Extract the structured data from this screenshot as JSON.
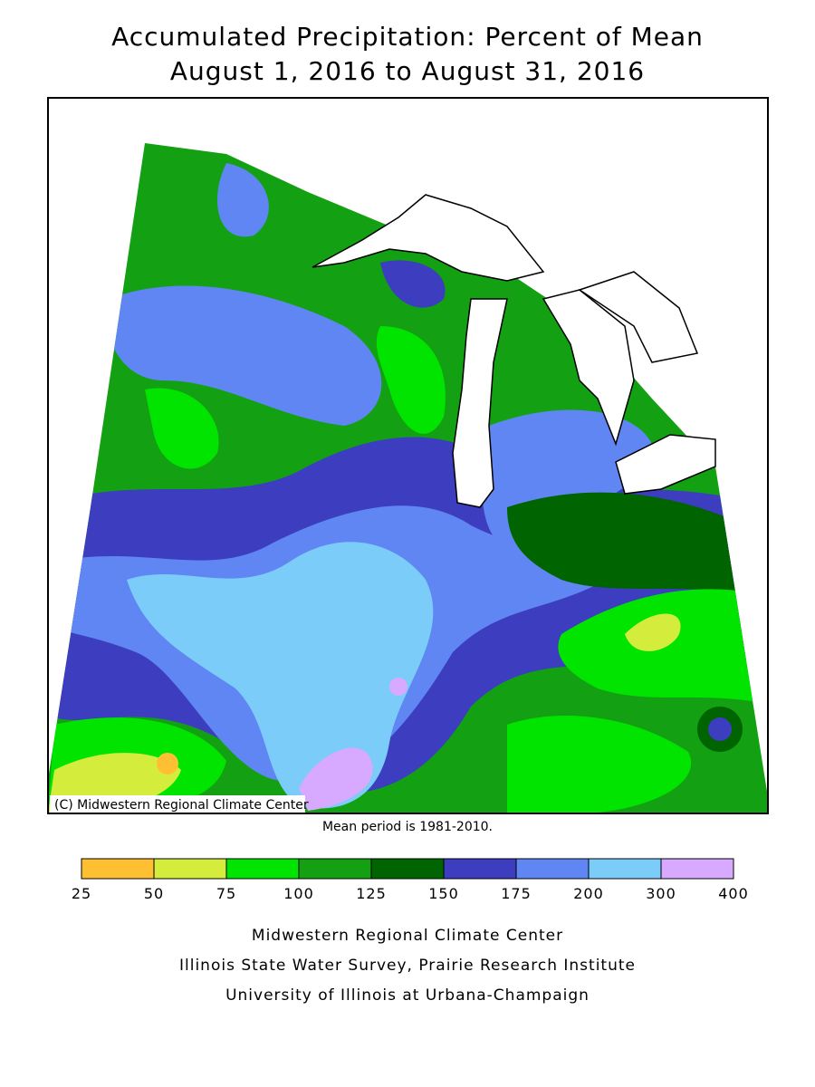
{
  "title": [
    "Accumulated Precipitation: Percent of Mean",
    "August 1, 2016 to August 31, 2016"
  ],
  "map": {
    "credit": "(C) Midwestern Regional Climate Center"
  },
  "note": "Mean period is 1981-2010.",
  "legend": {
    "breaks": [
      25,
      50,
      75,
      100,
      125,
      150,
      175,
      200,
      300,
      400
    ],
    "colors": [
      "#ffbf33",
      "#d4ec3c",
      "#00e400",
      "#13a113",
      "#006400",
      "#3d3dbf",
      "#5f86f2",
      "#7cccfa",
      "#d7aaff"
    ]
  },
  "footer": [
    "Midwestern Regional Climate Center",
    "Illinois State Water Survey, Prairie Research Institute",
    "University of Illinois at Urbana-Champaign"
  ]
}
